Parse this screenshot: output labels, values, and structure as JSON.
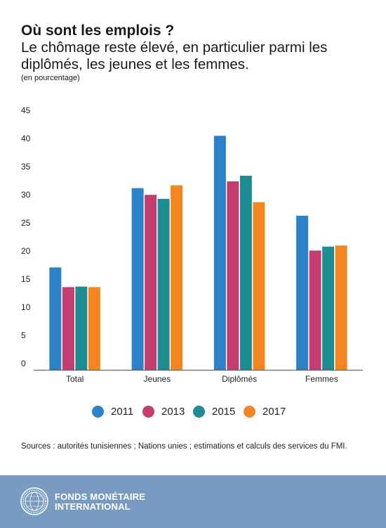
{
  "header": {
    "title": "Où sont les emplois ?",
    "subtitle": "Le chômage reste élevé, en particulier parmi les diplômés, les jeunes et les femmes.",
    "unit_note": "(en pourcentage)"
  },
  "chart_data": {
    "type": "bar",
    "title": "Où sont les emplois ?",
    "subtitle": "Le chômage reste élevé, en particulier parmi les diplômés, les jeunes et les femmes.",
    "ylabel": "(en pourcentage)",
    "categories": [
      "Total",
      "Jeunes",
      "Diplômés",
      "Femmes"
    ],
    "series": [
      {
        "name": "2011",
        "color": "#2b82c9",
        "values": [
          18.2,
          32.3,
          41.6,
          27.4
        ]
      },
      {
        "name": "2013",
        "color": "#c43d6e",
        "values": [
          14.7,
          31.1,
          33.5,
          21.2
        ]
      },
      {
        "name": "2015",
        "color": "#1e8c93",
        "values": [
          14.8,
          30.4,
          34.5,
          21.9
        ]
      },
      {
        "name": "2017",
        "color": "#f5861f",
        "values": [
          14.7,
          32.8,
          29.8,
          22.1
        ]
      }
    ],
    "ylim": [
      0,
      45
    ],
    "yticks": [
      0,
      5,
      10,
      15,
      20,
      25,
      30,
      35,
      40,
      45
    ],
    "grid": false,
    "legend_position": "bottom"
  },
  "source": "Sources : autorités tunisiennes ; Nations unies ; estimations et calculs des services du FMI.",
  "footer": {
    "org_line1": "FONDS MONÉTAIRE",
    "org_line2": "INTERNATIONAL",
    "seal_icon": "imf-seal-icon",
    "background_color": "#7a9bc1"
  }
}
